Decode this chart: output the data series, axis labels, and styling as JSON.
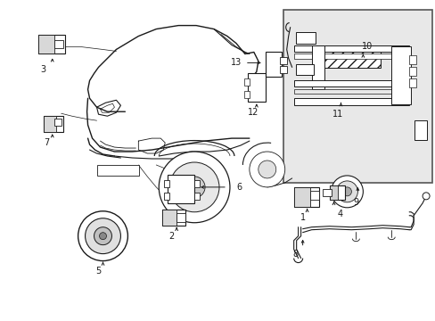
{
  "bg_color": "#ffffff",
  "inset_bg": "#e0e0e0",
  "line_color": "#1a1a1a",
  "fig_width": 4.89,
  "fig_height": 3.6,
  "dpi": 100
}
